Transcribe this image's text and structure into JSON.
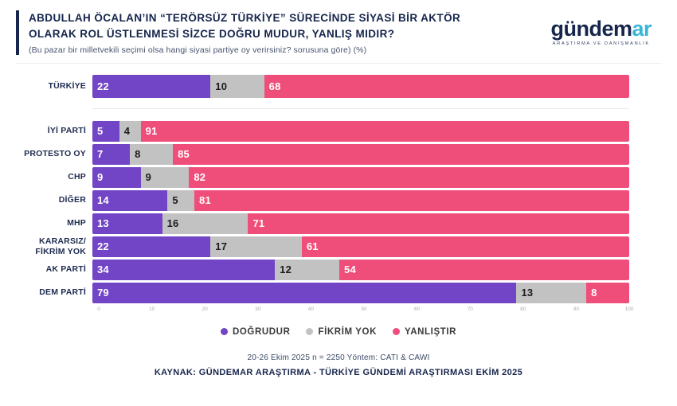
{
  "header": {
    "title_line1": "ABDULLAH ÖCALAN’IN “TERÖRSÜZ TÜRKİYE” SÜRECİNDE SİYASİ BİR AKTÖR",
    "title_line2": "OLARAK ROL ÜSTLENMESİ SİZCE DOĞRU MUDUR, YANLIŞ MIDIR?",
    "subtitle": "(Bu pazar bir milletvekili seçimi olsa hangi siyasi partiye oy verirsiniz? sorusuna göre) (%)",
    "logo": {
      "primary": "gündem",
      "accent": "ar",
      "tagline": "ARAŞTIRMA VE DANIŞMANLIK"
    }
  },
  "chart_data": {
    "type": "bar",
    "orientation": "horizontal",
    "stacked": true,
    "grid": false,
    "legend_position": "bottom",
    "separator_after_first": true,
    "categories": [
      "TÜRKİYE",
      "İYİ PARTİ",
      "PROTESTO OY",
      "CHP",
      "DİĞER",
      "MHP",
      "KARARSIZ/ FİKRİM YOK",
      "AK PARTİ",
      "DEM PARTİ"
    ],
    "series": [
      {
        "key": "dogrudur",
        "name": "DOĞRUDUR",
        "color": "#7244c6",
        "value_color": "#ffffff",
        "values": [
          22,
          5,
          7,
          9,
          14,
          13,
          22,
          34,
          79
        ]
      },
      {
        "key": "fikrim-yok",
        "name": "FİKRİM YOK",
        "color": "#c2c2c2",
        "value_color": "#1c1c1c",
        "values": [
          10,
          4,
          8,
          9,
          5,
          16,
          17,
          12,
          13
        ]
      },
      {
        "key": "yanlistir",
        "name": "YANLIŞTIR",
        "color": "#f04e7a",
        "value_color": "#ffffff",
        "values": [
          68,
          91,
          85,
          82,
          81,
          71,
          61,
          54,
          8
        ]
      }
    ],
    "x_ticks": [
      "0",
      "10",
      "20",
      "30",
      "40",
      "50",
      "60",
      "70",
      "80",
      "90",
      "100"
    ],
    "xlim": [
      0,
      100
    ]
  },
  "footer": {
    "note": "20-26 Ekim 2025 n = 2250 Yöntem: CATI & CAWI",
    "source": "KAYNAK: GÜNDEMAR ARAŞTIRMA - TÜRKİYE GÜNDEMİ ARAŞTIRMASI EKİM 2025"
  },
  "colors": {
    "dogrudur": "#7244c6",
    "fikrim_yok": "#c2c2c2",
    "yanlistir": "#f04e7a",
    "navy": "#16254c",
    "cyan": "#38b6da"
  }
}
